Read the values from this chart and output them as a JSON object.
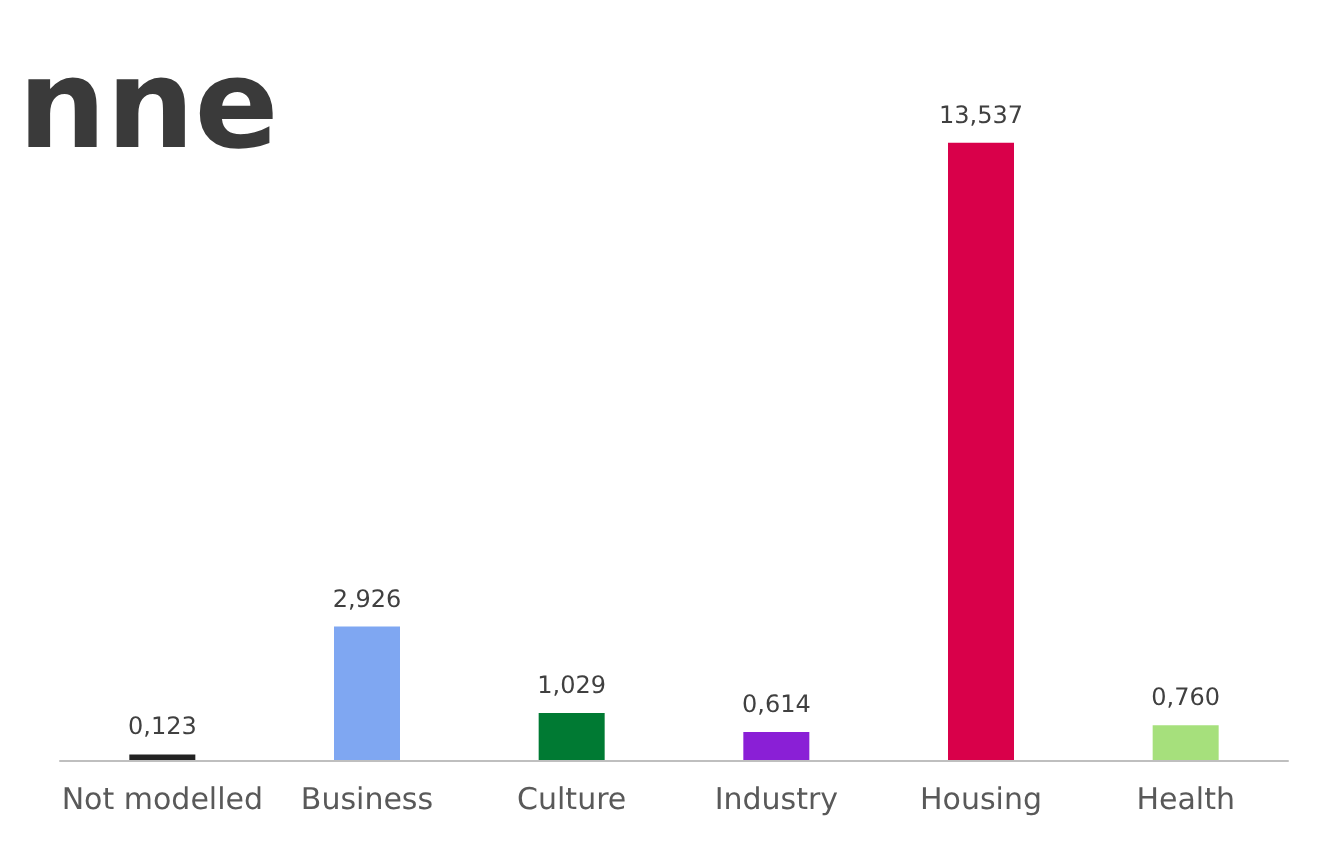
{
  "chart_data": {
    "type": "bar",
    "title": "nne",
    "categories": [
      "Not modelled",
      "Business",
      "Culture",
      "Industry",
      "Housing",
      "Health"
    ],
    "values": [
      0.123,
      2.926,
      1.029,
      0.614,
      13.537,
      0.76
    ],
    "value_labels": [
      "0,123",
      "2,926",
      "1,029",
      "0,614",
      "13,537",
      "0,760"
    ],
    "colors": [
      "#ffffff",
      "#7fa7f2",
      "#007a33",
      "#8a1fd6",
      "#d9004a",
      "#a6e07c"
    ],
    "grid": false
  }
}
